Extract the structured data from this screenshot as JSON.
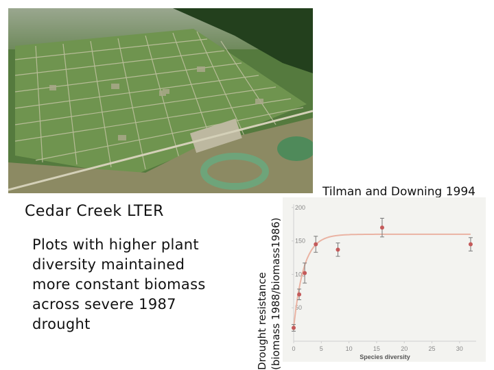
{
  "photo": {
    "subject": "aerial-field-plots"
  },
  "caption": {
    "title": "Cedar Creek LTER",
    "body": "Plots with higher plant diversity maintained more constant biomass across severe 1987 drought"
  },
  "citation": "Tilman and Downing 1994",
  "chart_data": {
    "type": "scatter",
    "xlabel": "Species diversity",
    "ylabel_line1": "Drought resistance",
    "ylabel_line2": "(biomass 1988/biomass1986)",
    "xlim": [
      0,
      33
    ],
    "ylim": [
      0,
      205
    ],
    "xticks": [
      0,
      5,
      10,
      15,
      20,
      25,
      30
    ],
    "yticks": [
      50,
      100,
      150,
      200
    ],
    "grid": false,
    "legend": "none",
    "points": [
      {
        "x": 0,
        "y": 20
      },
      {
        "x": 1,
        "y": 70
      },
      {
        "x": 2,
        "y": 102
      },
      {
        "x": 4,
        "y": 145
      },
      {
        "x": 8,
        "y": 137
      },
      {
        "x": 16,
        "y": 170
      },
      {
        "x": 32,
        "y": 145
      }
    ],
    "errors": [
      5,
      8,
      15,
      12,
      10,
      14,
      10
    ],
    "fit": {
      "form": "saturating",
      "asymptote": 160
    },
    "colors": {
      "point": "#c45a5a",
      "curve": "#eab3a3",
      "axis": "#cfcfcf",
      "panel": "#f3f3f0",
      "tick_text": "#888888"
    }
  }
}
